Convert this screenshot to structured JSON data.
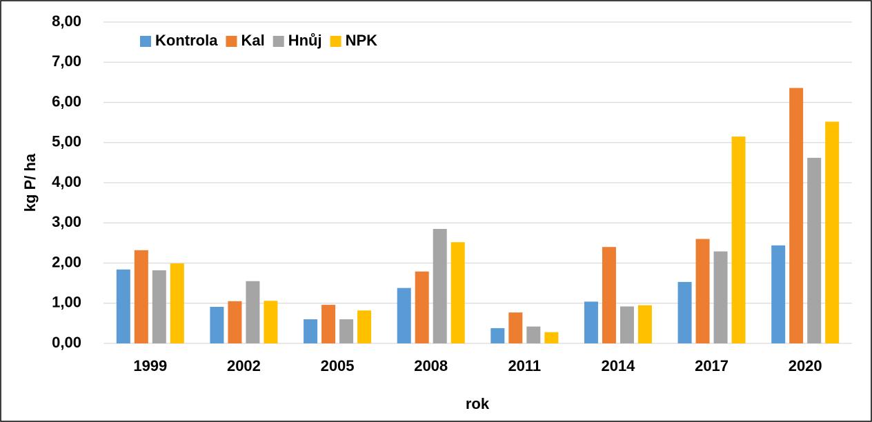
{
  "chart_data": {
    "type": "bar",
    "x_label": "rok",
    "y_label": "kg P/ ha",
    "categories": [
      "1999",
      "2002",
      "2005",
      "2008",
      "2011",
      "2014",
      "2017",
      "2020"
    ],
    "series": [
      {
        "name": "Kontrola",
        "color": "#5b9bd5",
        "values": [
          1.84,
          0.91,
          0.6,
          1.38,
          0.38,
          1.04,
          1.53,
          2.44
        ]
      },
      {
        "name": "Kal",
        "color": "#ed7d31",
        "values": [
          2.32,
          1.05,
          0.96,
          1.79,
          0.77,
          2.4,
          2.6,
          6.36
        ]
      },
      {
        "name": "Hnůj",
        "color": "#a5a5a5",
        "values": [
          1.82,
          1.55,
          0.6,
          2.85,
          0.42,
          0.92,
          2.29,
          4.62
        ]
      },
      {
        "name": "NPK",
        "color": "#ffc000",
        "values": [
          1.99,
          1.06,
          0.82,
          2.52,
          0.28,
          0.95,
          5.15,
          5.52
        ]
      }
    ],
    "ylim": [
      0,
      8
    ],
    "yticks": [
      {
        "value": 0,
        "label": "0,00"
      },
      {
        "value": 1,
        "label": "1,00"
      },
      {
        "value": 2,
        "label": "2,00"
      },
      {
        "value": 3,
        "label": "3,00"
      },
      {
        "value": 4,
        "label": "4,00"
      },
      {
        "value": 5,
        "label": "5,00"
      },
      {
        "value": 6,
        "label": "6,00"
      },
      {
        "value": 7,
        "label": "7,00"
      },
      {
        "value": 8,
        "label": "8,00"
      }
    ],
    "grid": true,
    "legend": "upper left"
  }
}
